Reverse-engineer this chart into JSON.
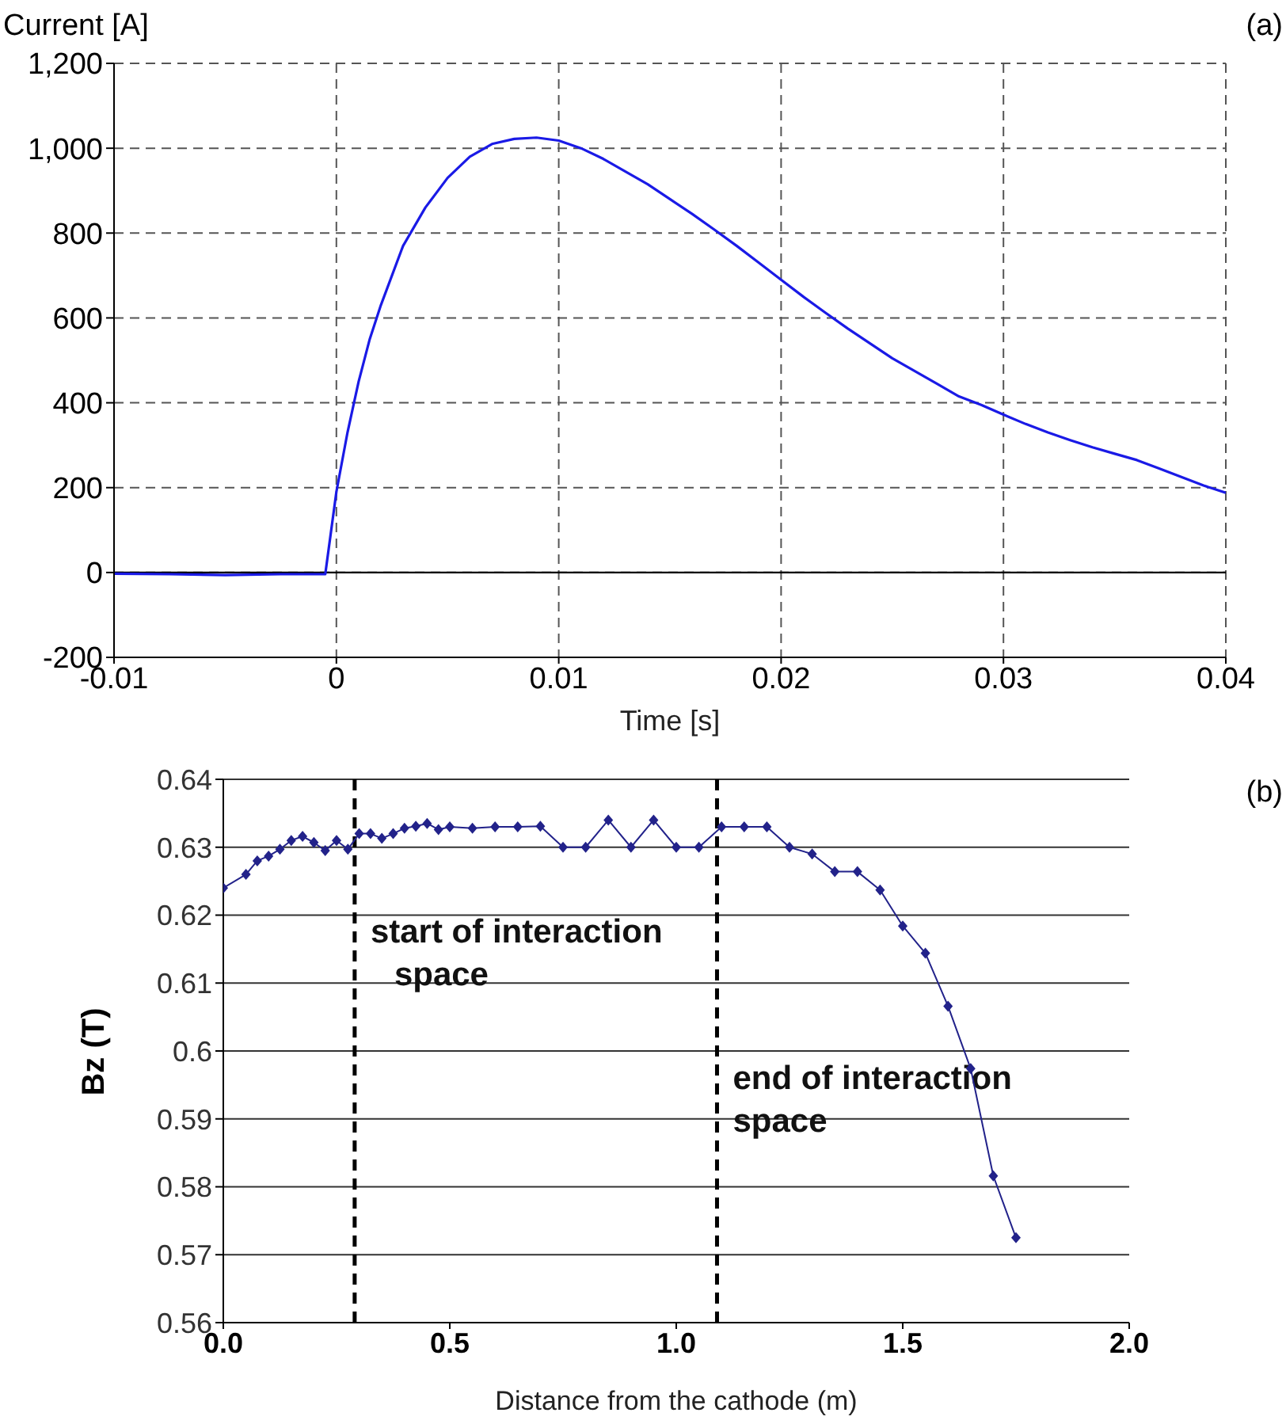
{
  "chart_data": [
    {
      "type": "line",
      "xlabel": "Time [s]",
      "ylabel": "Current [A]",
      "annotations": [
        "(a)"
      ],
      "x": [
        -0.01,
        -0.0075,
        -0.005,
        -0.0025,
        -0.0005,
        0,
        0.0005,
        0.001,
        0.0015,
        0.002,
        0.003,
        0.004,
        0.005,
        0.006,
        0.007,
        0.008,
        0.009,
        0.01,
        0.011,
        0.012,
        0.013,
        0.014,
        0.015,
        0.016,
        0.017,
        0.018,
        0.019,
        0.02,
        0.021,
        0.022,
        0.023,
        0.024,
        0.025,
        0.026,
        0.027,
        0.028,
        0.029,
        0.03,
        0.031,
        0.032,
        0.033,
        0.034,
        0.035,
        0.036,
        0.037,
        0.038,
        0.039,
        0.04
      ],
      "series": [
        {
          "color": "#1a1ae6",
          "values": [
            -3,
            -4,
            -6,
            -4,
            -4,
            190,
            330,
            450,
            550,
            630,
            770,
            860,
            930,
            980,
            1010,
            1022,
            1025,
            1018,
            1000,
            975,
            945,
            915,
            880,
            845,
            808,
            770,
            730,
            690,
            650,
            612,
            575,
            540,
            505,
            475,
            445,
            415,
            395,
            372,
            350,
            330,
            312,
            295,
            280,
            265,
            245,
            225,
            205,
            188
          ]
        }
      ],
      "xlim": [
        -0.01,
        0.04
      ],
      "xticks": [
        -0.01,
        0,
        0.01,
        0.02,
        0.03,
        0.04
      ],
      "ylim": [
        -200,
        1200
      ],
      "yticks": [
        -200,
        0,
        200,
        400,
        600,
        800,
        {
          "value": 1000,
          "label": "1,000"
        },
        {
          "value": 1200,
          "label": "1,200"
        }
      ],
      "grid": true,
      "line_style": "solid",
      "marker": "none",
      "ref_lines": [
        {
          "axis": "y",
          "value": 0,
          "color": "#000000",
          "line_style": "solid"
        }
      ]
    },
    {
      "type": "line",
      "xlabel": "Distance from the cathode (m)",
      "ylabel": "Bz (T)",
      "annotations": [
        "(b)"
      ],
      "x": [
        0,
        0.05,
        0.075,
        0.1,
        0.125,
        0.15,
        0.175,
        0.2,
        0.225,
        0.25,
        0.275,
        0.3,
        0.325,
        0.35,
        0.375,
        0.4,
        0.425,
        0.45,
        0.475,
        0.5,
        0.55,
        0.6,
        0.65,
        0.7,
        0.75,
        0.8,
        0.85,
        0.9,
        0.95,
        1.0,
        1.05,
        1.1,
        1.15,
        1.2,
        1.25,
        1.3,
        1.35,
        1.4,
        1.45,
        1.5,
        1.55,
        1.6,
        1.65,
        1.7,
        1.75
      ],
      "series": [
        {
          "color": "#22228a",
          "values": [
            0.624,
            0.626,
            0.628,
            0.6287,
            0.6297,
            0.631,
            0.6316,
            0.6307,
            0.6295,
            0.631,
            0.6297,
            0.632,
            0.632,
            0.6313,
            0.632,
            0.6328,
            0.6331,
            0.6335,
            0.6326,
            0.633,
            0.6328,
            0.633,
            0.633,
            0.6331,
            0.63,
            0.63,
            0.634,
            0.63,
            0.634,
            0.63,
            0.63,
            0.633,
            0.633,
            0.633,
            0.63,
            0.629,
            0.6264,
            0.6264,
            0.6237,
            0.6184,
            0.6144,
            0.6066,
            0.5974,
            0.5816,
            0.5725
          ]
        }
      ],
      "xlim": [
        0,
        2
      ],
      "xticks": [
        {
          "value": 0,
          "label": "0.0"
        },
        {
          "value": 0.5,
          "label": "0.5"
        },
        {
          "value": 1,
          "label": "1.0"
        },
        {
          "value": 1.5,
          "label": "1.5"
        },
        {
          "value": 2,
          "label": "2.0"
        }
      ],
      "ylim": [
        0.56,
        0.64
      ],
      "yticks": [
        0.56,
        0.57,
        0.58,
        0.59,
        0.6,
        0.61,
        0.62,
        0.63,
        0.64
      ],
      "grid": "y",
      "line_style": "solid",
      "marker": "diamond",
      "ref_lines": [
        {
          "axis": "x",
          "value": 0.29,
          "label": "start of interaction space",
          "color": "#000000",
          "line_style": "dashed"
        },
        {
          "axis": "x",
          "value": 1.09,
          "label": "end of interaction space",
          "color": "#000000",
          "line_style": "dashed"
        }
      ]
    }
  ]
}
